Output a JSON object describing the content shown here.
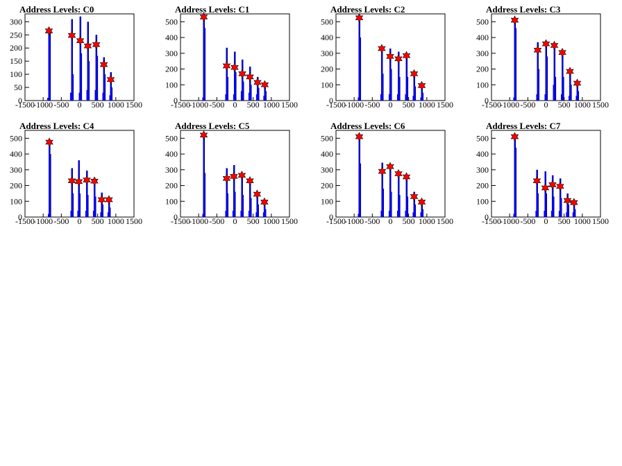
{
  "charts": [
    {
      "title": "Address Levels: C0"
    },
    {
      "title": "Address Levels: C1"
    },
    {
      "title": "Address Levels: C2"
    },
    {
      "title": "Address Levels: C3"
    },
    {
      "title": "Address Levels: C4"
    },
    {
      "title": "Address Levels: C5"
    },
    {
      "title": "Address Levels: C6"
    },
    {
      "title": "Address Levels: C7"
    }
  ],
  "colors": {
    "histogram": "#0000ff",
    "peak_marker": "#ff0000",
    "axis": "#000000"
  },
  "chart_data": [
    {
      "type": "bar",
      "title": "Address Levels: C0",
      "xlim": [
        -1500,
        1500
      ],
      "ylim": [
        0,
        330
      ],
      "xticks": [
        -1500,
        -1000,
        -500,
        0,
        500,
        1000,
        1500
      ],
      "yticks": [
        0,
        50,
        100,
        150,
        200,
        250,
        300
      ],
      "peaks": [
        {
          "x": -840,
          "y": 265
        },
        {
          "x": -210,
          "y": 248
        },
        {
          "x": 20,
          "y": 228
        },
        {
          "x": 230,
          "y": 208
        },
        {
          "x": 460,
          "y": 213
        },
        {
          "x": 670,
          "y": 137
        },
        {
          "x": 860,
          "y": 80
        }
      ],
      "bars": [
        [
          -870,
          10
        ],
        [
          -840,
          265
        ],
        [
          -820,
          270
        ],
        [
          -240,
          30
        ],
        [
          -210,
          310
        ],
        [
          -190,
          100
        ],
        [
          0,
          30
        ],
        [
          20,
          320
        ],
        [
          40,
          180
        ],
        [
          210,
          40
        ],
        [
          230,
          300
        ],
        [
          250,
          150
        ],
        [
          440,
          40
        ],
        [
          460,
          250
        ],
        [
          480,
          170
        ],
        [
          650,
          30
        ],
        [
          670,
          165
        ],
        [
          690,
          100
        ],
        [
          840,
          20
        ],
        [
          860,
          108
        ],
        [
          880,
          50
        ]
      ]
    },
    {
      "type": "bar",
      "title": "Address Levels: C1",
      "xlim": [
        -1500,
        1500
      ],
      "ylim": [
        0,
        550
      ],
      "xticks": [
        -1500,
        -1000,
        -500,
        0,
        500,
        1000,
        1500
      ],
      "yticks": [
        0,
        100,
        200,
        300,
        400,
        500
      ],
      "peaks": [
        {
          "x": -860,
          "y": 530
        },
        {
          "x": -230,
          "y": 220
        },
        {
          "x": -10,
          "y": 210
        },
        {
          "x": 200,
          "y": 170
        },
        {
          "x": 410,
          "y": 150
        },
        {
          "x": 620,
          "y": 115
        },
        {
          "x": 820,
          "y": 100
        }
      ],
      "bars": [
        [
          -880,
          20
        ],
        [
          -860,
          540
        ],
        [
          -840,
          460
        ],
        [
          -250,
          40
        ],
        [
          -230,
          335
        ],
        [
          -210,
          150
        ],
        [
          -30,
          40
        ],
        [
          -10,
          310
        ],
        [
          10,
          180
        ],
        [
          180,
          60
        ],
        [
          200,
          260
        ],
        [
          220,
          120
        ],
        [
          390,
          50
        ],
        [
          410,
          215
        ],
        [
          430,
          100
        ],
        [
          600,
          40
        ],
        [
          620,
          150
        ],
        [
          640,
          80
        ],
        [
          800,
          30
        ],
        [
          820,
          115
        ],
        [
          840,
          60
        ]
      ]
    },
    {
      "type": "bar",
      "title": "Address Levels: C2",
      "xlim": [
        -1500,
        1500
      ],
      "ylim": [
        0,
        550
      ],
      "xticks": [
        -1500,
        -1000,
        -500,
        0,
        500,
        1000,
        1500
      ],
      "yticks": [
        0,
        100,
        200,
        300,
        400,
        500
      ],
      "peaks": [
        {
          "x": -860,
          "y": 525
        },
        {
          "x": -240,
          "y": 330
        },
        {
          "x": -10,
          "y": 280
        },
        {
          "x": 220,
          "y": 265
        },
        {
          "x": 440,
          "y": 285
        },
        {
          "x": 650,
          "y": 170
        },
        {
          "x": 860,
          "y": 95
        }
      ],
      "bars": [
        [
          -880,
          20
        ],
        [
          -860,
          540
        ],
        [
          -840,
          400
        ],
        [
          -260,
          40
        ],
        [
          -240,
          330
        ],
        [
          -220,
          170
        ],
        [
          -30,
          40
        ],
        [
          -10,
          330
        ],
        [
          10,
          200
        ],
        [
          200,
          40
        ],
        [
          220,
          310
        ],
        [
          240,
          150
        ],
        [
          420,
          40
        ],
        [
          440,
          290
        ],
        [
          460,
          150
        ],
        [
          630,
          30
        ],
        [
          650,
          175
        ],
        [
          670,
          90
        ],
        [
          840,
          20
        ],
        [
          860,
          105
        ],
        [
          880,
          50
        ]
      ]
    },
    {
      "type": "bar",
      "title": "Address Levels: C3",
      "xlim": [
        -1500,
        1500
      ],
      "ylim": [
        0,
        550
      ],
      "xticks": [
        -1500,
        -1000,
        -500,
        0,
        500,
        1000,
        1500
      ],
      "yticks": [
        0,
        100,
        200,
        300,
        400,
        500
      ],
      "peaks": [
        {
          "x": -860,
          "y": 510
        },
        {
          "x": -230,
          "y": 320
        },
        {
          "x": 0,
          "y": 360
        },
        {
          "x": 230,
          "y": 350
        },
        {
          "x": 450,
          "y": 305
        },
        {
          "x": 660,
          "y": 185
        },
        {
          "x": 860,
          "y": 110
        }
      ],
      "bars": [
        [
          -880,
          20
        ],
        [
          -860,
          520
        ],
        [
          -840,
          460
        ],
        [
          -250,
          40
        ],
        [
          -230,
          370
        ],
        [
          -210,
          200
        ],
        [
          -20,
          40
        ],
        [
          0,
          370
        ],
        [
          20,
          280
        ],
        [
          210,
          100
        ],
        [
          230,
          360
        ],
        [
          250,
          150
        ],
        [
          430,
          40
        ],
        [
          450,
          310
        ],
        [
          470,
          150
        ],
        [
          640,
          30
        ],
        [
          660,
          200
        ],
        [
          680,
          100
        ],
        [
          840,
          30
        ],
        [
          860,
          125
        ],
        [
          880,
          60
        ]
      ]
    },
    {
      "type": "bar",
      "title": "Address Levels: C4",
      "xlim": [
        -1500,
        1500
      ],
      "ylim": [
        0,
        550
      ],
      "xticks": [
        -1500,
        -1000,
        -500,
        0,
        500,
        1000,
        1500
      ],
      "yticks": [
        0,
        100,
        200,
        300,
        400,
        500
      ],
      "peaks": [
        {
          "x": -830,
          "y": 475
        },
        {
          "x": -210,
          "y": 230
        },
        {
          "x": -20,
          "y": 225
        },
        {
          "x": 200,
          "y": 235
        },
        {
          "x": 410,
          "y": 228
        },
        {
          "x": 610,
          "y": 110
        },
        {
          "x": 810,
          "y": 110
        }
      ],
      "bars": [
        [
          -850,
          20
        ],
        [
          -830,
          485
        ],
        [
          -810,
          400
        ],
        [
          -230,
          40
        ],
        [
          -210,
          310
        ],
        [
          -190,
          150
        ],
        [
          -40,
          40
        ],
        [
          -20,
          360
        ],
        [
          0,
          150
        ],
        [
          180,
          40
        ],
        [
          200,
          295
        ],
        [
          220,
          140
        ],
        [
          390,
          40
        ],
        [
          410,
          250
        ],
        [
          430,
          130
        ],
        [
          590,
          30
        ],
        [
          610,
          155
        ],
        [
          630,
          80
        ],
        [
          790,
          30
        ],
        [
          810,
          120
        ],
        [
          830,
          60
        ]
      ]
    },
    {
      "type": "bar",
      "title": "Address Levels: C5",
      "xlim": [
        -1500,
        1500
      ],
      "ylim": [
        0,
        550
      ],
      "xticks": [
        -1500,
        -1000,
        -500,
        0,
        500,
        1000,
        1500
      ],
      "yticks": [
        0,
        100,
        200,
        300,
        400,
        500
      ],
      "peaks": [
        {
          "x": -860,
          "y": 520
        },
        {
          "x": -230,
          "y": 245
        },
        {
          "x": -30,
          "y": 258
        },
        {
          "x": 190,
          "y": 265
        },
        {
          "x": 410,
          "y": 230
        },
        {
          "x": 610,
          "y": 145
        },
        {
          "x": 810,
          "y": 95
        }
      ],
      "bars": [
        [
          -880,
          20
        ],
        [
          -860,
          535
        ],
        [
          -840,
          280
        ],
        [
          -250,
          40
        ],
        [
          -230,
          310
        ],
        [
          -210,
          150
        ],
        [
          -50,
          40
        ],
        [
          -30,
          330
        ],
        [
          -10,
          160
        ],
        [
          170,
          40
        ],
        [
          190,
          280
        ],
        [
          210,
          140
        ],
        [
          390,
          40
        ],
        [
          410,
          240
        ],
        [
          430,
          120
        ],
        [
          590,
          30
        ],
        [
          610,
          160
        ],
        [
          630,
          80
        ],
        [
          790,
          30
        ],
        [
          810,
          100
        ],
        [
          830,
          50
        ]
      ]
    },
    {
      "type": "bar",
      "title": "Address Levels: C6",
      "xlim": [
        -1500,
        1500
      ],
      "ylim": [
        0,
        550
      ],
      "xticks": [
        -1500,
        -1000,
        -500,
        0,
        500,
        1000,
        1500
      ],
      "yticks": [
        0,
        100,
        200,
        300,
        400,
        500
      ],
      "peaks": [
        {
          "x": -860,
          "y": 510
        },
        {
          "x": -230,
          "y": 290
        },
        {
          "x": -10,
          "y": 320
        },
        {
          "x": 220,
          "y": 275
        },
        {
          "x": 440,
          "y": 255
        },
        {
          "x": 650,
          "y": 130
        },
        {
          "x": 860,
          "y": 95
        }
      ],
      "bars": [
        [
          -880,
          20
        ],
        [
          -860,
          520
        ],
        [
          -840,
          340
        ],
        [
          -250,
          40
        ],
        [
          -230,
          345
        ],
        [
          -210,
          180
        ],
        [
          -30,
          40
        ],
        [
          -10,
          330
        ],
        [
          10,
          160
        ],
        [
          200,
          40
        ],
        [
          220,
          285
        ],
        [
          240,
          140
        ],
        [
          420,
          40
        ],
        [
          440,
          260
        ],
        [
          460,
          130
        ],
        [
          630,
          30
        ],
        [
          650,
          160
        ],
        [
          670,
          80
        ],
        [
          840,
          30
        ],
        [
          860,
          105
        ],
        [
          880,
          50
        ]
      ]
    },
    {
      "type": "bar",
      "title": "Address Levels: C7",
      "xlim": [
        -1500,
        1500
      ],
      "ylim": [
        0,
        550
      ],
      "xticks": [
        -1500,
        -1000,
        -500,
        0,
        500,
        1000,
        1500
      ],
      "yticks": [
        0,
        100,
        200,
        300,
        400,
        500
      ],
      "peaks": [
        {
          "x": -860,
          "y": 510
        },
        {
          "x": -250,
          "y": 230
        },
        {
          "x": -20,
          "y": 185
        },
        {
          "x": 180,
          "y": 205
        },
        {
          "x": 390,
          "y": 195
        },
        {
          "x": 590,
          "y": 105
        },
        {
          "x": 770,
          "y": 92
        }
      ],
      "bars": [
        [
          -880,
          20
        ],
        [
          -860,
          520
        ],
        [
          -840,
          440
        ],
        [
          -270,
          40
        ],
        [
          -250,
          300
        ],
        [
          -230,
          150
        ],
        [
          -40,
          40
        ],
        [
          -20,
          290
        ],
        [
          0,
          150
        ],
        [
          160,
          40
        ],
        [
          180,
          265
        ],
        [
          200,
          130
        ],
        [
          370,
          40
        ],
        [
          390,
          245
        ],
        [
          410,
          120
        ],
        [
          570,
          30
        ],
        [
          590,
          150
        ],
        [
          610,
          80
        ],
        [
          750,
          30
        ],
        [
          770,
          100
        ],
        [
          790,
          50
        ]
      ]
    }
  ]
}
